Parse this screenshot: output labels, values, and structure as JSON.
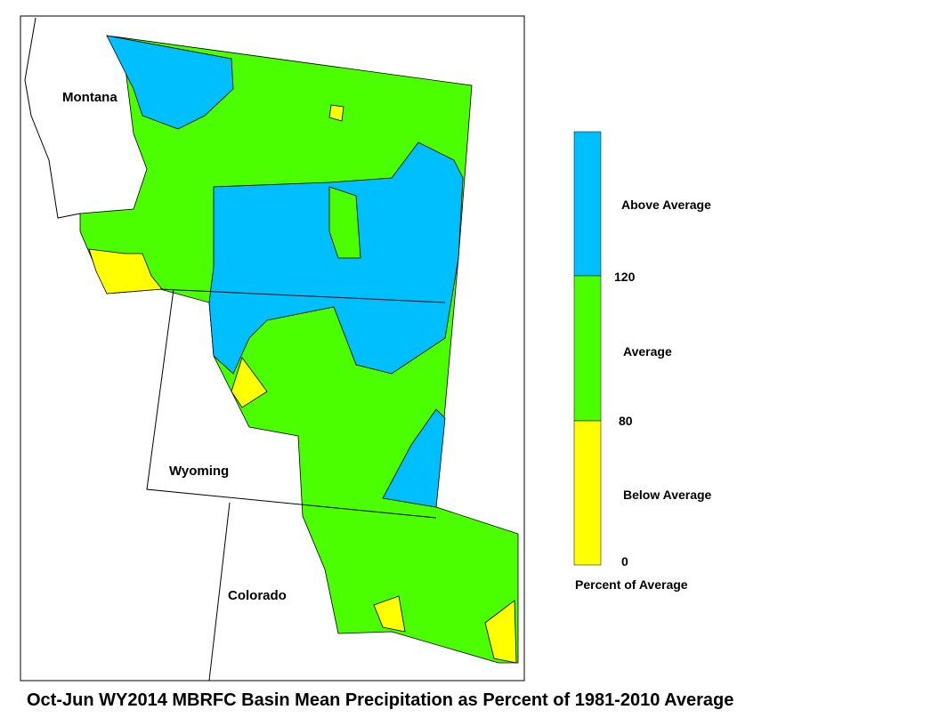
{
  "map": {
    "title": "Oct-Jun WY2014 MBRFC Basin Mean Precipitation as Percent of 1981-2010 Average",
    "state_labels": [
      "Montana",
      "Wyoming",
      "Colorado"
    ]
  },
  "legend": {
    "classes": [
      {
        "label": "Above Average",
        "color": "#00bfff"
      },
      {
        "label": "Average",
        "color": "#4cff00"
      },
      {
        "label": "Below Average",
        "color": "#ffff00"
      }
    ],
    "breaks": [
      "120",
      "80",
      "0"
    ],
    "caption": "Percent of Average"
  }
}
